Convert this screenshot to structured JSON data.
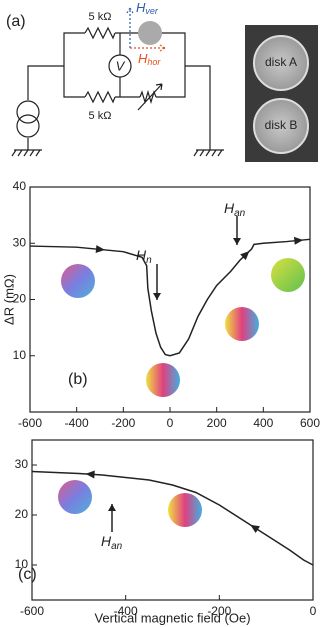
{
  "panel_a": {
    "label": "(a)",
    "resistor_top": "5 kΩ",
    "resistor_bottom": "5 kΩ",
    "voltmeter": "V",
    "h_ver": {
      "symbol": "H",
      "subscript": "ver",
      "color": "#2a5db0"
    },
    "h_hor": {
      "symbol": "H",
      "subscript": "hor",
      "color": "#e8501e"
    },
    "disk_a": "disk A",
    "disk_b": "disk B"
  },
  "chart_data": [
    {
      "type": "line",
      "panel_label": "(b)",
      "ylabel": "ΔR (mΩ)",
      "xlim": [
        -600,
        600
      ],
      "ylim": [
        0,
        40
      ],
      "xticks": [
        -600,
        -400,
        -200,
        0,
        200,
        400,
        600
      ],
      "yticks": [
        10,
        20,
        30,
        40
      ],
      "x": [
        -600,
        -400,
        -200,
        -120,
        -100,
        -95,
        -80,
        -60,
        -40,
        -20,
        0,
        40,
        80,
        120,
        160,
        200,
        260,
        300,
        350,
        360,
        400,
        500,
        600
      ],
      "series": [
        {
          "color": "#222222",
          "values": [
            29.5,
            29.3,
            28.5,
            27.5,
            26,
            22,
            18,
            14,
            11.5,
            10.2,
            10,
            10.5,
            13,
            17,
            20,
            22.5,
            25,
            27,
            29,
            29.8,
            30,
            30.3,
            30.7
          ]
        }
      ],
      "annotations": [
        {
          "symbol": "H",
          "subscript": "n"
        },
        {
          "symbol": "H",
          "subscript": "an"
        }
      ]
    },
    {
      "type": "line",
      "panel_label": "(c)",
      "xlabel": "Vertical magnetic field (Oe)",
      "xlim": [
        -600,
        0
      ],
      "ylim": [
        3,
        35
      ],
      "xticks": [
        -600,
        -400,
        -200,
        0
      ],
      "yticks": [
        10,
        20,
        30
      ],
      "x": [
        -600,
        -500,
        -450,
        -400,
        -350,
        -300,
        -250,
        -200,
        -150,
        -100,
        -50,
        -20,
        0
      ],
      "series": [
        {
          "color": "#222222",
          "values": [
            28.7,
            28.3,
            28,
            27.5,
            27,
            26,
            24.5,
            22,
            19,
            16,
            13,
            11,
            10
          ]
        }
      ],
      "annotations": [
        {
          "symbol": "H",
          "subscript": "an"
        }
      ]
    }
  ]
}
